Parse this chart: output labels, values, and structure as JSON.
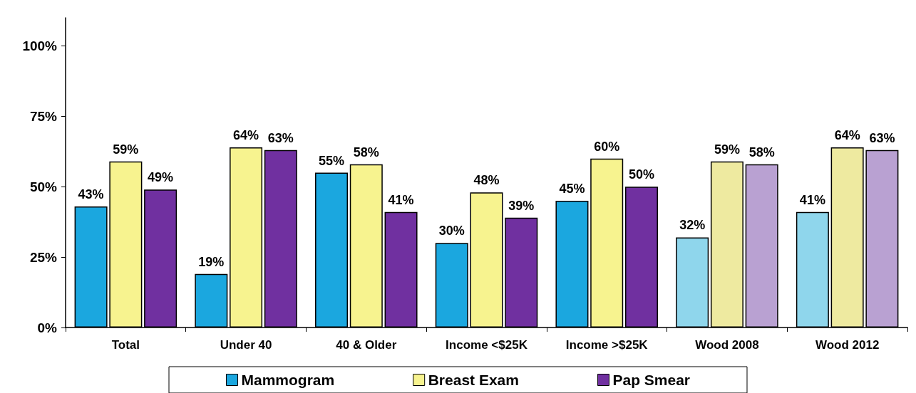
{
  "chart_data": {
    "type": "bar",
    "categories": [
      "Total",
      "Under 40",
      "40 & Older",
      "Income <$25K",
      "Income >$25K",
      "Wood 2008",
      "Wood 2012"
    ],
    "series": [
      {
        "name": "Mammogram",
        "color": "#1ba7df",
        "colors": [
          "#1ba7df",
          "#1ba7df",
          "#1ba7df",
          "#1ba7df",
          "#1ba7df",
          "#8fd6ec",
          "#8fd6ec"
        ],
        "values": [
          43,
          19,
          55,
          30,
          45,
          32,
          41
        ],
        "value_labels": [
          "43%",
          "19%",
          "55%",
          "30%",
          "45%",
          "32%",
          "41%"
        ]
      },
      {
        "name": "Breast Exam",
        "color": "#f7f38f",
        "colors": [
          "#f7f38f",
          "#f7f38f",
          "#f7f38f",
          "#f7f38f",
          "#f7f38f",
          "#eeeaa0",
          "#eeeaa0"
        ],
        "values": [
          59,
          64,
          58,
          48,
          60,
          59,
          64
        ],
        "value_labels": [
          "59%",
          "64%",
          "58%",
          "48%",
          "60%",
          "59%",
          "64%"
        ]
      },
      {
        "name": "Pap Smear",
        "color": "#7030a0",
        "colors": [
          "#7030a0",
          "#7030a0",
          "#7030a0",
          "#7030a0",
          "#7030a0",
          "#b9a1d2",
          "#b9a1d2"
        ],
        "values": [
          49,
          63,
          41,
          39,
          50,
          58,
          63
        ],
        "value_labels": [
          "49%",
          "63%",
          "41%",
          "39%",
          "50%",
          "58%",
          "63%"
        ]
      }
    ],
    "ylim": [
      0,
      110
    ],
    "yticks": [
      {
        "value": 0,
        "label": "0%"
      },
      {
        "value": 25,
        "label": "25%"
      },
      {
        "value": 50,
        "label": "50%"
      },
      {
        "value": 75,
        "label": "75%"
      },
      {
        "value": 100,
        "label": "100%"
      }
    ],
    "legend": "bottom"
  }
}
